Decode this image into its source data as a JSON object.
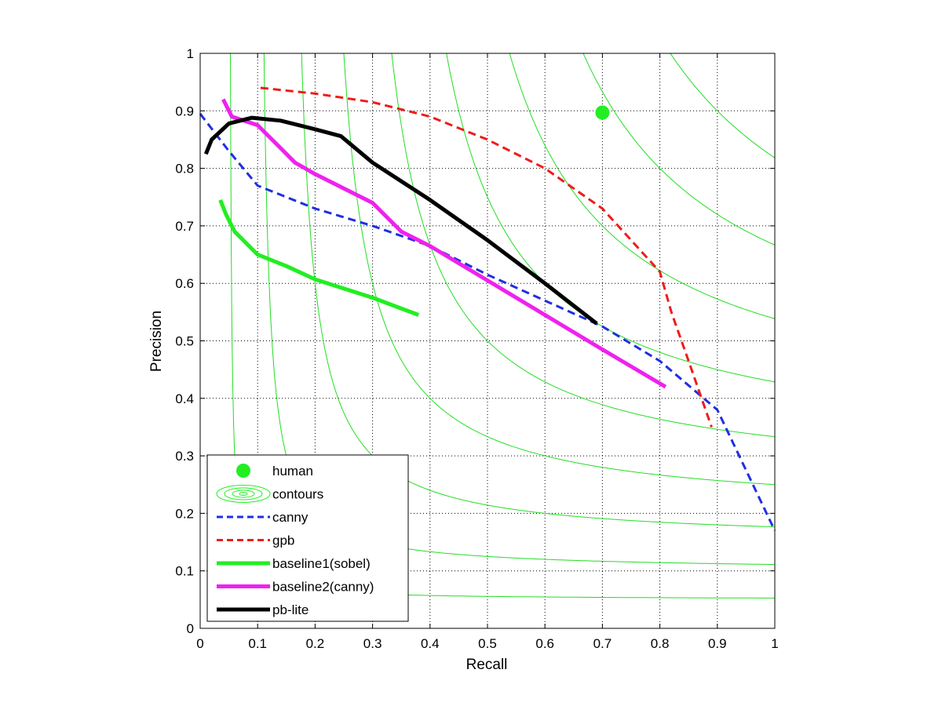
{
  "chart_data": {
    "type": "line",
    "title": "",
    "xlabel": "Recall",
    "ylabel": "Precision",
    "xlim": [
      0,
      1
    ],
    "ylim": [
      0,
      1
    ],
    "grid": true,
    "legend_position": "bottom-left",
    "xticks": [
      "0",
      "0.1",
      "0.2",
      "0.3",
      "0.4",
      "0.5",
      "0.6",
      "0.7",
      "0.8",
      "0.9",
      "1"
    ],
    "yticks": [
      "0",
      "0.1",
      "0.2",
      "0.3",
      "0.4",
      "0.5",
      "0.6",
      "0.7",
      "0.8",
      "0.9",
      "1"
    ],
    "contour_levels": [
      0.1,
      0.2,
      0.3,
      0.4,
      0.5,
      0.6,
      0.7,
      0.8,
      0.9
    ],
    "human_point": {
      "name": "human",
      "x": 0.7,
      "y": 0.897,
      "color": "#22ee22"
    },
    "series": [
      {
        "name": "canny",
        "color": "#1f2fe0",
        "style": "dashed",
        "x": [
          0.0,
          0.05,
          0.1,
          0.2,
          0.3,
          0.4,
          0.5,
          0.6,
          0.7,
          0.8,
          0.9,
          1.0
        ],
        "y": [
          0.895,
          0.83,
          0.77,
          0.73,
          0.7,
          0.665,
          0.615,
          0.57,
          0.525,
          0.465,
          0.38,
          0.17
        ]
      },
      {
        "name": "gpb",
        "color": "#ee1c1c",
        "style": "dashed",
        "x": [
          0.105,
          0.2,
          0.3,
          0.4,
          0.5,
          0.6,
          0.7,
          0.8,
          0.82,
          0.85,
          0.89
        ],
        "y": [
          0.94,
          0.93,
          0.915,
          0.89,
          0.85,
          0.8,
          0.73,
          0.62,
          0.55,
          0.465,
          0.35
        ]
      },
      {
        "name": "baseline1(sobel)",
        "color": "#22ee22",
        "style": "solid",
        "x": [
          0.035,
          0.045,
          0.06,
          0.1,
          0.15,
          0.2,
          0.3,
          0.38
        ],
        "y": [
          0.745,
          0.72,
          0.69,
          0.65,
          0.63,
          0.607,
          0.575,
          0.545
        ]
      },
      {
        "name": "baseline2(canny)",
        "color": "#ee22ee",
        "style": "solid",
        "x": [
          0.04,
          0.055,
          0.1,
          0.14,
          0.165,
          0.2,
          0.3,
          0.35,
          0.4,
          0.5,
          0.6,
          0.7,
          0.81
        ],
        "y": [
          0.92,
          0.89,
          0.875,
          0.835,
          0.81,
          0.79,
          0.74,
          0.69,
          0.665,
          0.605,
          0.545,
          0.485,
          0.42
        ]
      },
      {
        "name": "pb-lite",
        "color": "#000000",
        "style": "solid",
        "x": [
          0.01,
          0.02,
          0.05,
          0.09,
          0.14,
          0.2,
          0.245,
          0.3,
          0.4,
          0.5,
          0.6,
          0.69
        ],
        "y": [
          0.825,
          0.85,
          0.878,
          0.888,
          0.883,
          0.868,
          0.856,
          0.81,
          0.745,
          0.675,
          0.6,
          0.53
        ]
      }
    ],
    "legend": [
      {
        "label": "human",
        "kind": "marker",
        "color": "#22ee22"
      },
      {
        "label": "contours",
        "kind": "contour",
        "color": "#22ee22"
      },
      {
        "label": "canny",
        "kind": "dashed",
        "color": "#1f2fe0"
      },
      {
        "label": "gpb",
        "kind": "dashed",
        "color": "#ee1c1c"
      },
      {
        "label": "baseline1(sobel)",
        "kind": "solid",
        "color": "#22ee22"
      },
      {
        "label": "baseline2(canny)",
        "kind": "solid",
        "color": "#ee22ee"
      },
      {
        "label": "pb-lite",
        "kind": "solid",
        "color": "#000000"
      }
    ]
  }
}
